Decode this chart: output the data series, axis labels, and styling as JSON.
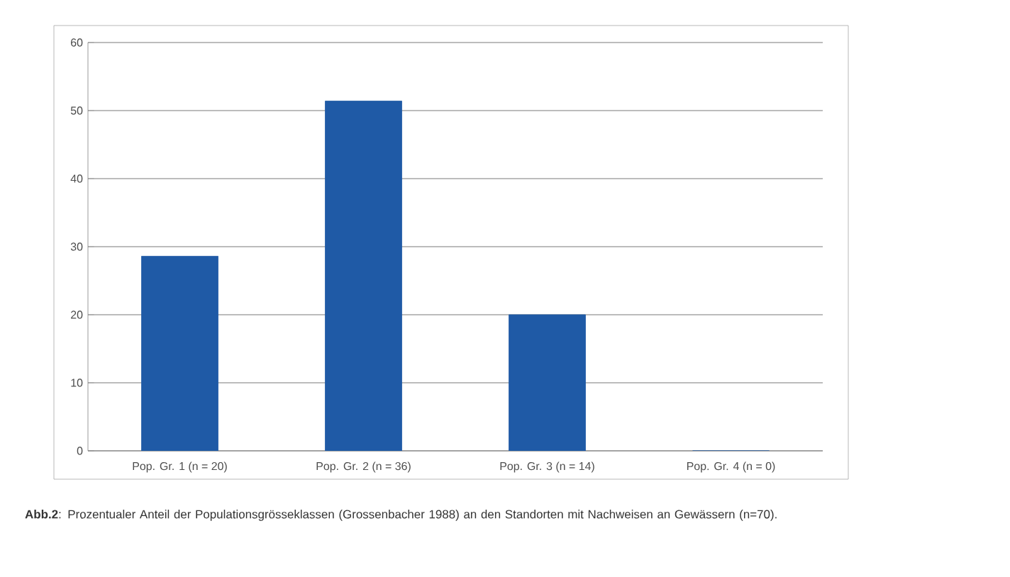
{
  "chart_data": {
    "type": "bar",
    "categories": [
      "Pop. Gr. 1 (n = 20)",
      "Pop. Gr. 2 (n = 36)",
      "Pop. Gr. 3 (n = 14)",
      "Pop. Gr. 4 (n = 0)"
    ],
    "values": [
      28.6,
      51.4,
      20,
      0
    ],
    "color": "#1f5aa6",
    "ylim": [
      0,
      60
    ],
    "yticks": [
      0,
      10,
      20,
      30,
      40,
      50,
      60
    ],
    "grid": "y",
    "annotations": [
      "**Abb.2**: Prozentualer Anteil der Populationsgrösseklassen (Grossenbacher 1988) an den Standorten mit Nachweisen an Gewässern (n=70)."
    ]
  }
}
